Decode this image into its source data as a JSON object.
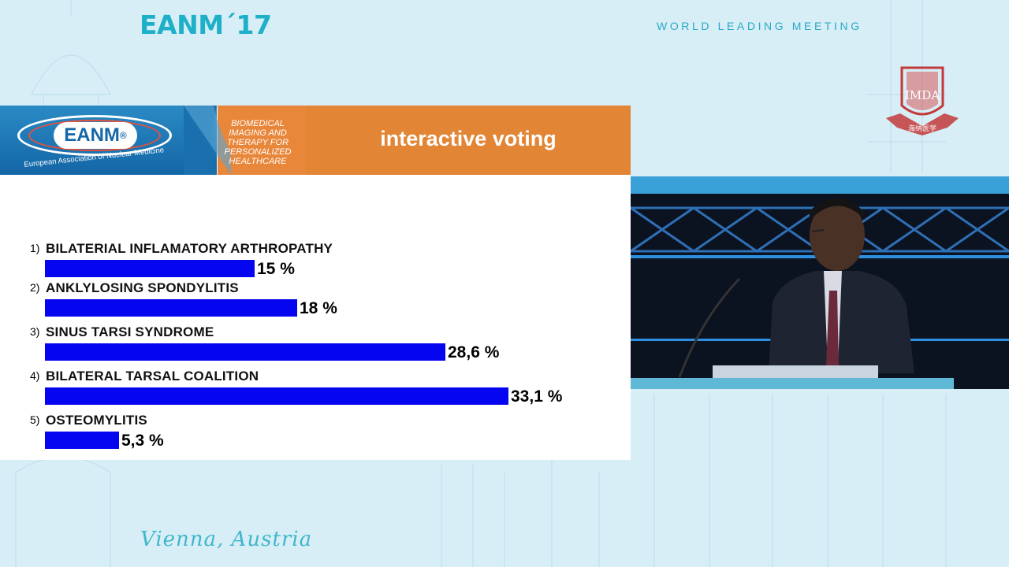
{
  "event": {
    "brand": "EANM´17",
    "tagline": "WORLD LEADING MEETING",
    "city": "Vienna, Austria",
    "seal_text": "IMDA",
    "seal_subtext": "海纳医学"
  },
  "slide": {
    "logo_text": "EANM",
    "logo_registered": "®",
    "logo_subtitle": "European Association of Nuclear Medicine",
    "theme_lines": [
      "BIOMEDICAL",
      "IMAGING AND",
      "THERAPY FOR",
      "PERSONALIZED",
      "HEALTHCARE"
    ],
    "title": "interactive voting"
  },
  "chart_data": {
    "type": "bar",
    "orientation": "horizontal",
    "categories": [
      "BILATERIAL INFLAMATORY ARTHROPATHY",
      "ANKLYLOSING SPONDYLITIS",
      "SINUS TARSI SYNDROME",
      "BILATERAL TARSAL COALITION",
      "OSTEOMYLITIS"
    ],
    "numbers": [
      "1)",
      "2)",
      "3)",
      "4)",
      "5)"
    ],
    "values": [
      15,
      18,
      28.6,
      33.1,
      5.3
    ],
    "value_labels": [
      "15 %",
      "18 %",
      "28,6 %",
      "33,1 %",
      "5,3 %"
    ],
    "unit": "%",
    "xlim": [
      0,
      33.1
    ],
    "bar_color": "#0505f0",
    "grid": false
  },
  "colors": {
    "accent": "#1fb0c9",
    "header_orange": "#e28535",
    "header_blue": "#1466a6"
  }
}
